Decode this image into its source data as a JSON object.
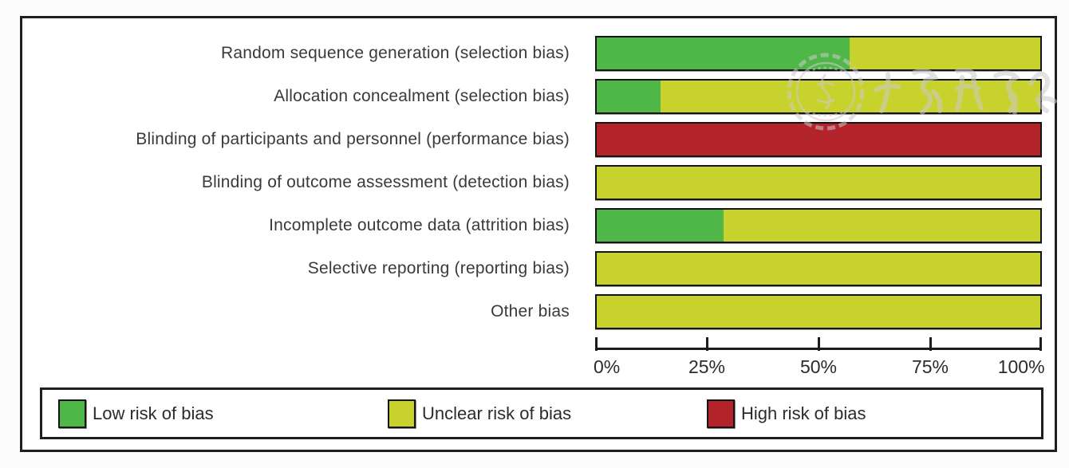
{
  "page": {
    "background": "#fcfcfc"
  },
  "figure": {
    "border_color": "#1f1f1f",
    "background": "#ffffff"
  },
  "watermark": {
    "description": "chinese-medical-association-circular-seal-with-calligraphy",
    "color": "#cccccc"
  },
  "chart_data": {
    "type": "bar",
    "variant": "horizontal-stacked-percent",
    "title": "",
    "xlabel": "",
    "ylabel": "",
    "categories": [
      "Random sequence generation (selection bias)",
      "Allocation concealment (selection bias)",
      "Blinding of participants and personnel (performance bias)",
      "Blinding of outcome assessment (detection bias)",
      "Incomplete outcome data (attrition bias)",
      "Selective reporting (reporting bias)",
      "Other bias"
    ],
    "series": [
      {
        "name": "Low risk of bias",
        "color": "#4fb748",
        "values": [
          57.1,
          14.3,
          0,
          0,
          28.6,
          0,
          0
        ]
      },
      {
        "name": "Unclear risk of bias",
        "color": "#c8d22c",
        "values": [
          42.9,
          85.7,
          0,
          100,
          71.4,
          100,
          100
        ]
      },
      {
        "name": "High risk of bias",
        "color": "#b2242a",
        "values": [
          0,
          0,
          100,
          0,
          0,
          0,
          0
        ]
      }
    ],
    "x_ticks": [
      "0%",
      "25%",
      "50%",
      "75%",
      "100%"
    ],
    "xlim": [
      0,
      100
    ],
    "grid": false,
    "legend_position": "bottom",
    "bar_border_color": "#141414"
  },
  "legend": {
    "items": [
      {
        "label": "Low risk of bias",
        "color": "#4fb748"
      },
      {
        "label": "Unclear risk of bias",
        "color": "#c8d22c"
      },
      {
        "label": "High risk of bias",
        "color": "#b2242a"
      }
    ]
  }
}
